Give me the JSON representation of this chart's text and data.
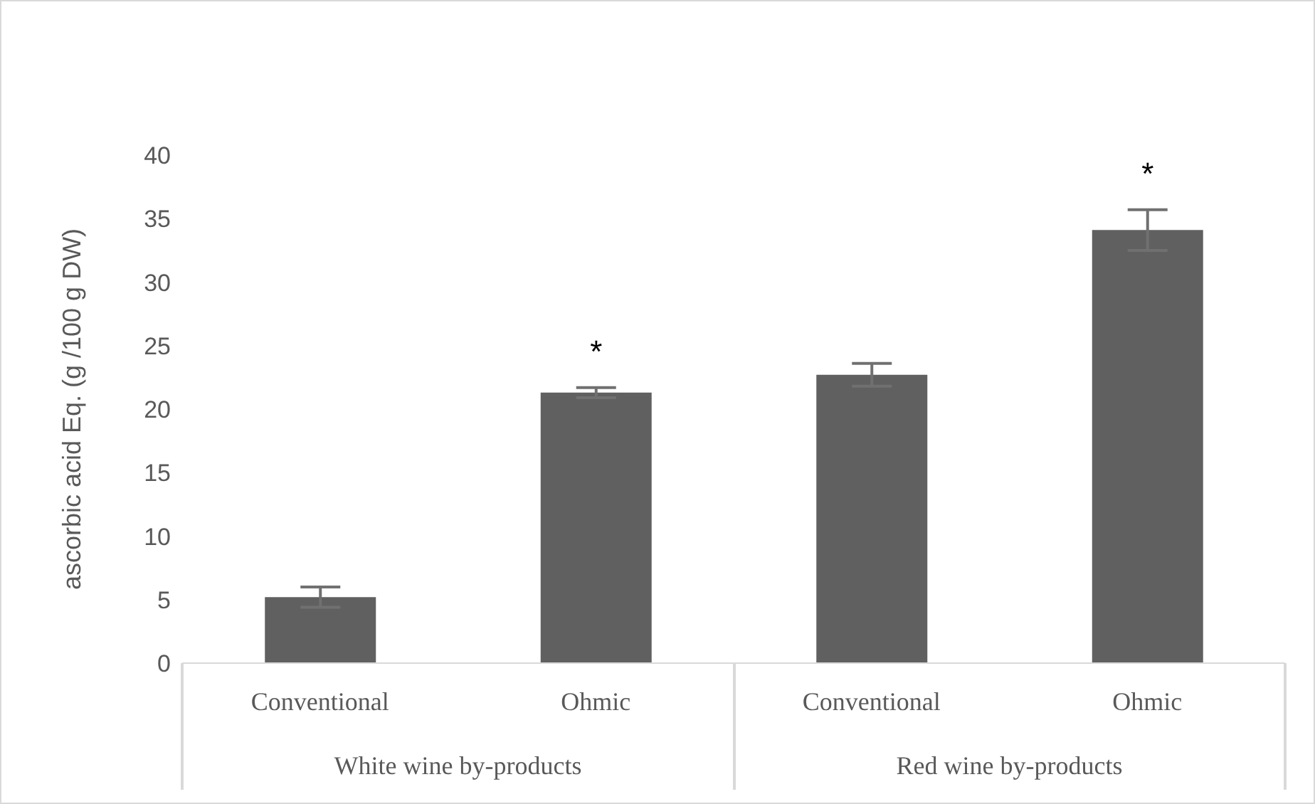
{
  "chart_data": {
    "type": "bar",
    "ylabel": "ascorbic acid Eq. (g /100 g DW)",
    "categories": [
      "Conventional",
      "Ohmic",
      "Conventional",
      "Ohmic"
    ],
    "values": [
      5.2,
      21.3,
      22.7,
      34.1
    ],
    "errors": [
      0.8,
      0.4,
      0.9,
      1.6
    ],
    "color": "#606060",
    "ylim": [
      0,
      40
    ],
    "yticks": [
      0,
      5,
      10,
      15,
      20,
      25,
      30,
      35,
      40
    ],
    "grid": false,
    "legend": false,
    "value_labels": [
      null,
      "*",
      null,
      "*"
    ],
    "annotations": [
      "White wine by-products",
      "Red wine by-products"
    ]
  }
}
